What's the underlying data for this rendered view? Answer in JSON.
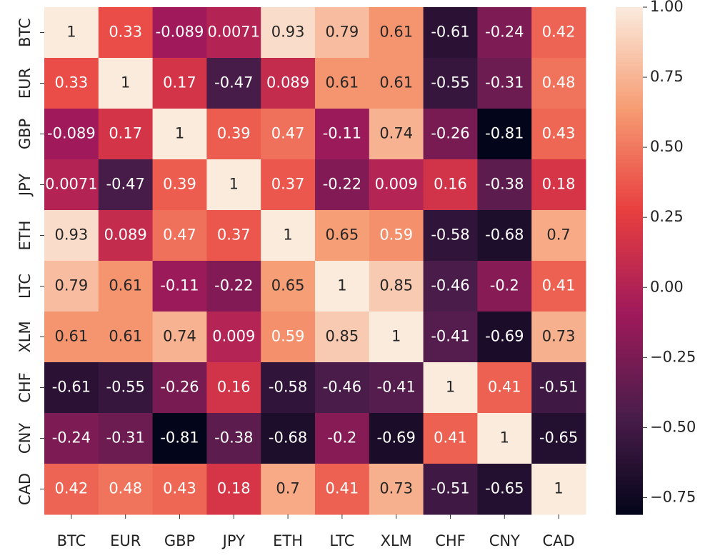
{
  "chart_data": {
    "type": "heatmap",
    "categories": [
      "BTC",
      "EUR",
      "GBP",
      "JPY",
      "ETH",
      "LTC",
      "XLM",
      "CHF",
      "CNY",
      "CAD"
    ],
    "y_categories": [
      "BTC",
      "EUR",
      "GBP",
      "JPY",
      "ETH",
      "LTC",
      "XLM",
      "CHF",
      "CNY",
      "CAD"
    ],
    "values": [
      [
        1,
        0.33,
        -0.089,
        0.0071,
        0.93,
        0.79,
        0.61,
        -0.61,
        -0.24,
        0.42
      ],
      [
        0.33,
        1,
        0.17,
        -0.47,
        0.089,
        0.61,
        0.61,
        -0.55,
        -0.31,
        0.48
      ],
      [
        -0.089,
        0.17,
        1,
        0.39,
        0.47,
        -0.11,
        0.74,
        -0.26,
        -0.81,
        0.43
      ],
      [
        0.0071,
        -0.47,
        0.39,
        1,
        0.37,
        -0.22,
        0.009,
        0.16,
        -0.38,
        0.18
      ],
      [
        0.93,
        0.089,
        0.47,
        0.37,
        1,
        0.65,
        0.59,
        -0.58,
        -0.68,
        0.7
      ],
      [
        0.79,
        0.61,
        -0.11,
        -0.22,
        0.65,
        1,
        0.85,
        -0.46,
        -0.2,
        0.41
      ],
      [
        0.61,
        0.61,
        0.74,
        0.009,
        0.59,
        0.85,
        1,
        -0.41,
        -0.69,
        0.73
      ],
      [
        -0.61,
        -0.55,
        -0.26,
        0.16,
        -0.58,
        -0.46,
        -0.41,
        1,
        0.41,
        -0.51
      ],
      [
        -0.24,
        -0.31,
        -0.81,
        -0.38,
        -0.68,
        -0.2,
        -0.69,
        0.41,
        1,
        -0.65
      ],
      [
        0.42,
        0.48,
        0.43,
        0.18,
        0.7,
        0.41,
        0.73,
        -0.51,
        -0.65,
        1
      ]
    ],
    "colorbar": {
      "lim": [
        -0.81,
        1
      ],
      "ticks": [
        {
          "value": 1,
          "label": "1.00"
        },
        {
          "value": 0.75,
          "label": "0.75"
        },
        {
          "value": 0.5,
          "label": "0.50"
        },
        {
          "value": 0.25,
          "label": "0.25"
        },
        {
          "value": 0,
          "label": "0.00"
        },
        {
          "value": -0.25,
          "label": "−0.25"
        },
        {
          "value": -0.5,
          "label": "−0.50"
        },
        {
          "value": -0.75,
          "label": "−0.75"
        }
      ],
      "colors": [
        "#03051a",
        "#4c1d4b",
        "#a11a5b",
        "#e83f3f",
        "#f69c73",
        "#faebdd"
      ]
    }
  }
}
